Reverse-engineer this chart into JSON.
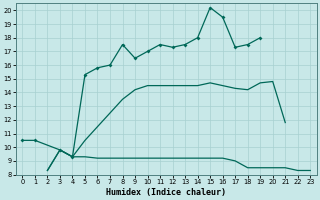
{
  "xlabel": "Humidex (Indice chaleur)",
  "background_color": "#c8e8e8",
  "grid_color": "#a8d0d0",
  "line_color": "#006858",
  "xlim": [
    -0.5,
    23.5
  ],
  "ylim": [
    8,
    20.5
  ],
  "xticks": [
    0,
    1,
    2,
    3,
    4,
    5,
    6,
    7,
    8,
    9,
    10,
    11,
    12,
    13,
    14,
    15,
    16,
    17,
    18,
    19,
    20,
    21,
    22,
    23
  ],
  "yticks": [
    8,
    9,
    10,
    11,
    12,
    13,
    14,
    15,
    16,
    17,
    18,
    19,
    20
  ],
  "line1_x": [
    2,
    3,
    4,
    5,
    6,
    7,
    8,
    9,
    10,
    11,
    12,
    13,
    14,
    15,
    16,
    17,
    18,
    19,
    20,
    21,
    22,
    23
  ],
  "line1_y": [
    8.3,
    9.8,
    9.3,
    9.3,
    9.2,
    9.2,
    9.2,
    9.2,
    9.2,
    9.2,
    9.2,
    9.2,
    9.2,
    9.2,
    9.2,
    9.0,
    8.5,
    8.5,
    8.5,
    8.5,
    8.3,
    8.3
  ],
  "line2_x": [
    2,
    3,
    4,
    5,
    6,
    7,
    8,
    9,
    10,
    11,
    12,
    13,
    14,
    15,
    16,
    17,
    18,
    19,
    20,
    21
  ],
  "line2_y": [
    8.3,
    9.8,
    9.3,
    10.5,
    11.5,
    12.5,
    13.5,
    14.2,
    14.5,
    14.5,
    14.5,
    14.5,
    14.5,
    14.7,
    14.5,
    14.3,
    14.2,
    14.7,
    14.8,
    11.8
  ],
  "line3_x": [
    0,
    1,
    3,
    4,
    5,
    6,
    7,
    8,
    9,
    10,
    11,
    12,
    13,
    14,
    15,
    16,
    17,
    18,
    19
  ],
  "line3_y": [
    10.5,
    10.5,
    9.8,
    9.3,
    15.3,
    15.8,
    16.0,
    17.5,
    16.5,
    17.0,
    17.5,
    17.3,
    17.5,
    18.0,
    20.2,
    19.5,
    17.3,
    17.5,
    18.0
  ]
}
